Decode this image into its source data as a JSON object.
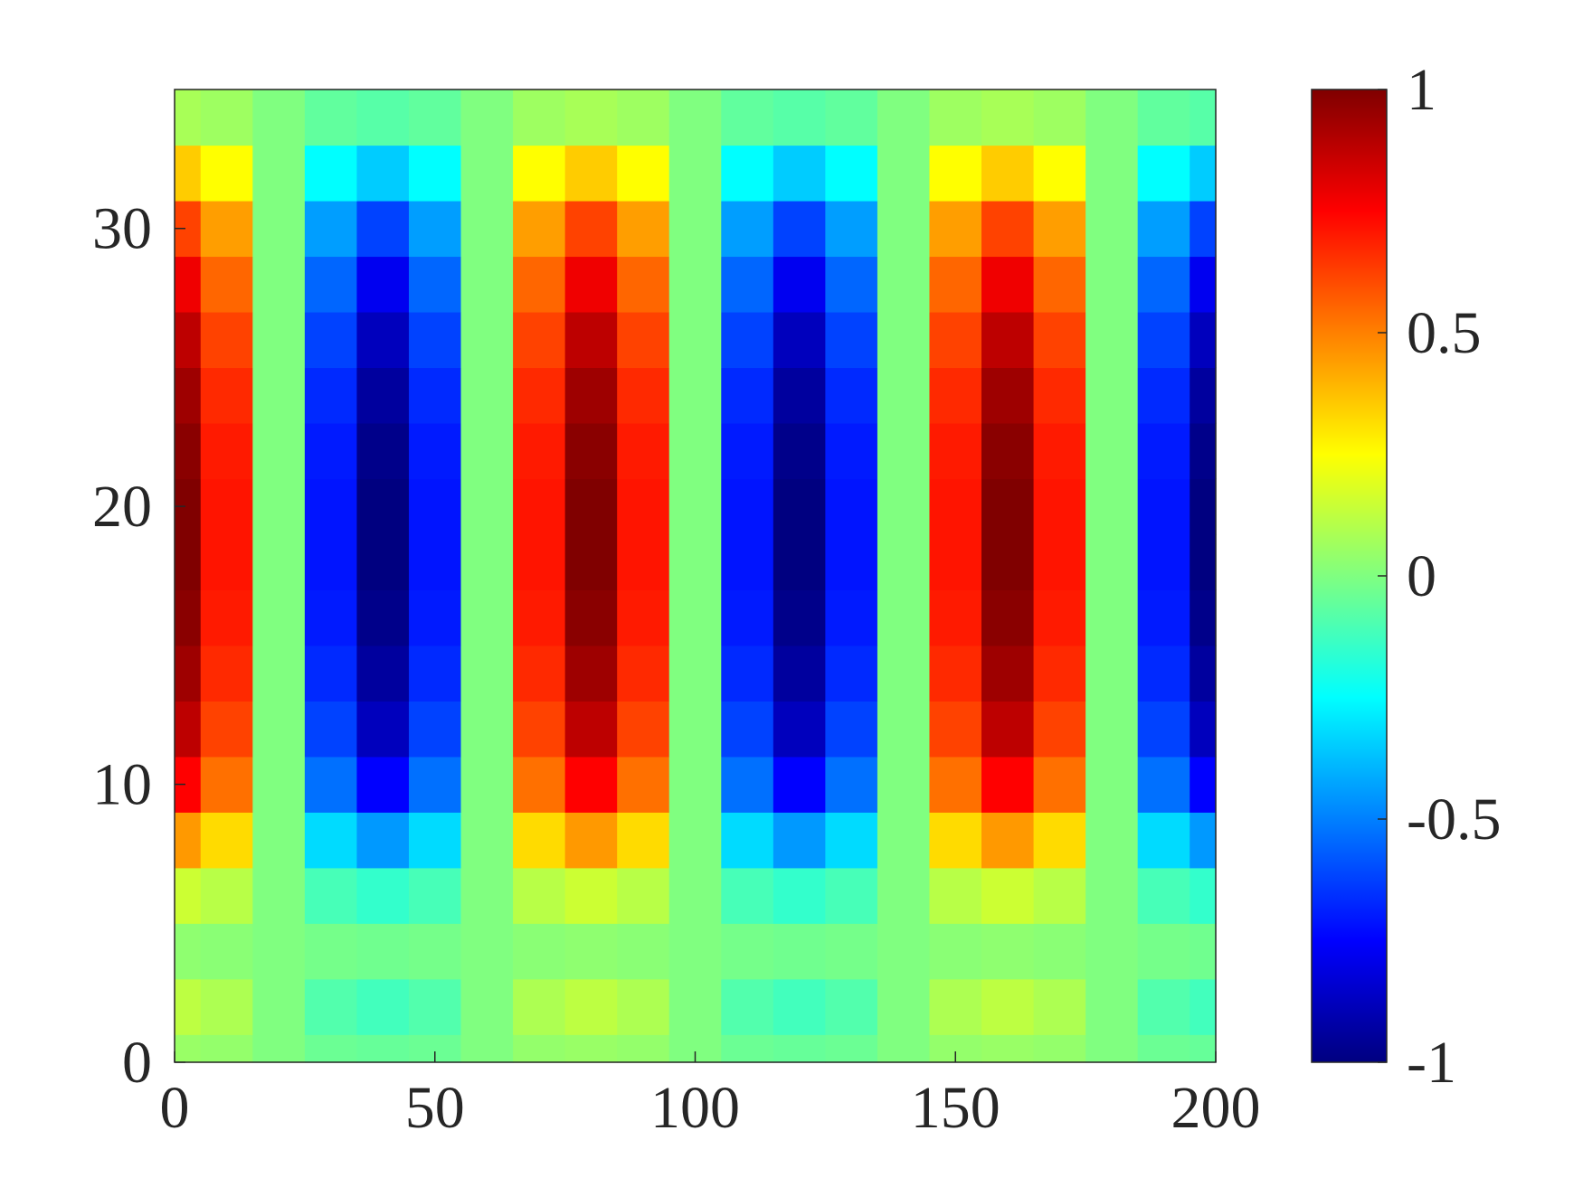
{
  "chart_data": {
    "type": "heatmap",
    "colormap": "jet",
    "x": [
      0,
      10,
      20,
      30,
      40,
      50,
      60,
      70,
      80,
      90,
      100,
      110,
      120,
      130,
      140,
      150,
      160,
      170,
      180,
      190,
      200
    ],
    "y": [
      0,
      2,
      4,
      6,
      8,
      10,
      12,
      14,
      16,
      18,
      20,
      22,
      24,
      26,
      28,
      30,
      32,
      34
    ],
    "z": [
      [
        0.05,
        0.04,
        0,
        -0.04,
        -0.05,
        -0.04,
        0,
        0.04,
        0.05,
        0.04,
        0,
        -0.04,
        -0.05,
        -0.04,
        0,
        0.04,
        0.05,
        0.04,
        0,
        -0.04,
        -0.05
      ],
      [
        0.12,
        0.09,
        0,
        -0.09,
        -0.12,
        -0.09,
        0,
        0.09,
        0.12,
        0.09,
        0,
        -0.09,
        -0.12,
        -0.09,
        0,
        0.09,
        0.12,
        0.09,
        0,
        -0.09,
        -0.12
      ],
      [
        0.03,
        0.02,
        0,
        -0.02,
        -0.03,
        -0.02,
        0,
        0.02,
        0.03,
        0.02,
        0,
        -0.02,
        -0.03,
        -0.02,
        0,
        0.02,
        0.03,
        0.02,
        0,
        -0.02,
        -0.03
      ],
      [
        0.15,
        0.11,
        0,
        -0.11,
        -0.15,
        -0.11,
        0,
        0.11,
        0.15,
        0.11,
        0,
        -0.11,
        -0.15,
        -0.11,
        0,
        0.11,
        0.15,
        0.11,
        0,
        -0.11,
        -0.15
      ],
      [
        0.45,
        0.32,
        0,
        -0.32,
        -0.45,
        -0.32,
        0,
        0.32,
        0.45,
        0.32,
        0,
        -0.32,
        -0.45,
        -0.32,
        0,
        0.32,
        0.45,
        0.32,
        0,
        -0.32,
        -0.45
      ],
      [
        0.75,
        0.53,
        0,
        -0.53,
        -0.75,
        -0.53,
        0,
        0.53,
        0.75,
        0.53,
        0,
        -0.53,
        -0.75,
        -0.53,
        0,
        0.53,
        0.75,
        0.53,
        0,
        -0.53,
        -0.75
      ],
      [
        0.88,
        0.62,
        0,
        -0.62,
        -0.88,
        -0.62,
        0,
        0.62,
        0.88,
        0.62,
        0,
        -0.62,
        -0.88,
        -0.62,
        0,
        0.62,
        0.88,
        0.62,
        0,
        -0.62,
        -0.88
      ],
      [
        0.94,
        0.67,
        0,
        -0.67,
        -0.94,
        -0.67,
        0,
        0.67,
        0.94,
        0.67,
        0,
        -0.67,
        -0.94,
        -0.67,
        0,
        0.67,
        0.94,
        0.67,
        0,
        -0.67,
        -0.94
      ],
      [
        0.98,
        0.7,
        0,
        -0.7,
        -0.98,
        -0.7,
        0,
        0.7,
        0.98,
        0.7,
        0,
        -0.7,
        -0.98,
        -0.7,
        0,
        0.7,
        0.98,
        0.7,
        0,
        -0.7,
        -0.98
      ],
      [
        1,
        0.71,
        0,
        -0.71,
        -1,
        -0.71,
        0,
        0.71,
        1,
        0.71,
        0,
        -0.71,
        -1,
        -0.71,
        0,
        0.71,
        1,
        0.71,
        0,
        -0.71,
        -1
      ],
      [
        1,
        0.71,
        0,
        -0.71,
        -1,
        -0.71,
        0,
        0.71,
        1,
        0.71,
        0,
        -0.71,
        -1,
        -0.71,
        0,
        0.71,
        1,
        0.71,
        0,
        -0.71,
        -1
      ],
      [
        0.98,
        0.7,
        0,
        -0.7,
        -0.98,
        -0.7,
        0,
        0.7,
        0.98,
        0.7,
        0,
        -0.7,
        -0.98,
        -0.7,
        0,
        0.7,
        0.98,
        0.7,
        0,
        -0.7,
        -0.98
      ],
      [
        0.94,
        0.67,
        0,
        -0.67,
        -0.94,
        -0.67,
        0,
        0.67,
        0.94,
        0.67,
        0,
        -0.67,
        -0.94,
        -0.67,
        0,
        0.67,
        0.94,
        0.67,
        0,
        -0.67,
        -0.94
      ],
      [
        0.88,
        0.62,
        0,
        -0.62,
        -0.88,
        -0.62,
        0,
        0.62,
        0.88,
        0.62,
        0,
        -0.62,
        -0.88,
        -0.62,
        0,
        0.62,
        0.88,
        0.62,
        0,
        -0.62,
        -0.88
      ],
      [
        0.78,
        0.55,
        0,
        -0.55,
        -0.78,
        -0.55,
        0,
        0.55,
        0.78,
        0.55,
        0,
        -0.55,
        -0.78,
        -0.55,
        0,
        0.55,
        0.78,
        0.55,
        0,
        -0.55,
        -0.78
      ],
      [
        0.62,
        0.44,
        0,
        -0.44,
        -0.62,
        -0.44,
        0,
        0.44,
        0.62,
        0.44,
        0,
        -0.44,
        -0.62,
        -0.44,
        0,
        0.44,
        0.62,
        0.44,
        0,
        -0.44,
        -0.62
      ],
      [
        0.35,
        0.25,
        0,
        -0.25,
        -0.35,
        -0.25,
        0,
        0.25,
        0.35,
        0.25,
        0,
        -0.25,
        -0.35,
        -0.25,
        0,
        0.25,
        0.35,
        0.25,
        0,
        -0.25,
        -0.35
      ],
      [
        0.08,
        0.06,
        0,
        -0.06,
        -0.08,
        -0.06,
        0,
        0.06,
        0.08,
        0.06,
        0,
        -0.06,
        -0.08,
        -0.06,
        0,
        0.06,
        0.08,
        0.06,
        0,
        -0.06,
        -0.08
      ]
    ],
    "xlim": [
      0,
      200
    ],
    "xticks": [
      0,
      50,
      100,
      150,
      200
    ],
    "ylim": [
      0,
      35
    ],
    "yticks": [
      0,
      10,
      20,
      30
    ],
    "colorbar": {
      "clim": [
        -1,
        1
      ],
      "ticks": [
        -1,
        -0.5,
        0,
        0.5,
        1
      ]
    }
  }
}
